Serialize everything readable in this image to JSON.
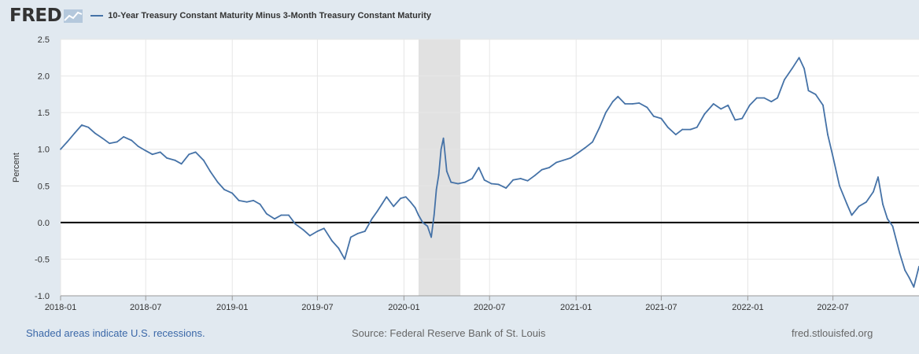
{
  "header": {
    "logo_text": "FRED",
    "logo_icon": "line-chart-icon",
    "series_title": "10-Year Treasury Constant Maturity Minus 3-Month Treasury Constant Maturity"
  },
  "footer": {
    "recession_note": "Shaded areas indicate U.S. recessions.",
    "source": "Source: Federal Reserve Bank of St. Louis",
    "site": "fred.stlouisfed.org"
  },
  "colors": {
    "background": "#e1e9f0",
    "plot_background": "#ffffff",
    "series": "#4572a7",
    "recession": "#e1e1e1",
    "zero_line": "#000000"
  },
  "chart_data": {
    "type": "line",
    "title": "10-Year Treasury Constant Maturity Minus 3-Month Treasury Constant Maturity",
    "ylabel": "Percent",
    "xlabel": "",
    "ylim": [
      -1.0,
      2.5
    ],
    "xlim": [
      "2018-01-01",
      "2022-12-31"
    ],
    "y_ticks": [
      -1.0,
      -0.5,
      0.0,
      0.5,
      1.0,
      1.5,
      2.0,
      2.5
    ],
    "y_tick_labels": [
      "-1.0",
      "-0.5",
      "0.0",
      "0.5",
      "1.0",
      "1.5",
      "2.0",
      "2.5"
    ],
    "x_ticks": [
      "2018-01-01",
      "2018-07-01",
      "2019-01-01",
      "2019-07-01",
      "2020-01-01",
      "2020-07-01",
      "2021-01-01",
      "2021-07-01",
      "2022-01-01",
      "2022-07-01"
    ],
    "x_tick_labels": [
      "2018-01",
      "2018-07",
      "2019-01",
      "2019-07",
      "2020-01",
      "2020-07",
      "2021-01",
      "2021-07",
      "2022-01",
      "2022-07"
    ],
    "grid": true,
    "recession_periods": [
      [
        "2020-02-01",
        "2020-04-30"
      ]
    ],
    "reference_line": 0.0,
    "series": [
      {
        "name": "10-Year Treasury Constant Maturity Minus 3-Month Treasury Constant Maturity",
        "points": [
          [
            "2018-01-01",
            1.0
          ],
          [
            "2018-01-15",
            1.1
          ],
          [
            "2018-01-31",
            1.22
          ],
          [
            "2018-02-15",
            1.33
          ],
          [
            "2018-03-01",
            1.3
          ],
          [
            "2018-03-15",
            1.22
          ],
          [
            "2018-03-31",
            1.15
          ],
          [
            "2018-04-15",
            1.08
          ],
          [
            "2018-05-01",
            1.1
          ],
          [
            "2018-05-15",
            1.17
          ],
          [
            "2018-06-01",
            1.12
          ],
          [
            "2018-06-15",
            1.04
          ],
          [
            "2018-07-01",
            0.98
          ],
          [
            "2018-07-15",
            0.93
          ],
          [
            "2018-08-01",
            0.96
          ],
          [
            "2018-08-15",
            0.88
          ],
          [
            "2018-09-01",
            0.85
          ],
          [
            "2018-09-15",
            0.8
          ],
          [
            "2018-10-01",
            0.93
          ],
          [
            "2018-10-15",
            0.96
          ],
          [
            "2018-11-01",
            0.85
          ],
          [
            "2018-11-15",
            0.7
          ],
          [
            "2018-12-01",
            0.55
          ],
          [
            "2018-12-15",
            0.45
          ],
          [
            "2019-01-01",
            0.4
          ],
          [
            "2019-01-15",
            0.3
          ],
          [
            "2019-02-01",
            0.28
          ],
          [
            "2019-02-15",
            0.3
          ],
          [
            "2019-03-01",
            0.25
          ],
          [
            "2019-03-15",
            0.12
          ],
          [
            "2019-04-01",
            0.05
          ],
          [
            "2019-04-15",
            0.1
          ],
          [
            "2019-05-01",
            0.1
          ],
          [
            "2019-05-15",
            -0.02
          ],
          [
            "2019-06-01",
            -0.1
          ],
          [
            "2019-06-15",
            -0.18
          ],
          [
            "2019-07-01",
            -0.12
          ],
          [
            "2019-07-15",
            -0.08
          ],
          [
            "2019-08-01",
            -0.25
          ],
          [
            "2019-08-15",
            -0.35
          ],
          [
            "2019-08-28",
            -0.5
          ],
          [
            "2019-09-10",
            -0.2
          ],
          [
            "2019-09-25",
            -0.15
          ],
          [
            "2019-10-10",
            -0.12
          ],
          [
            "2019-10-25",
            0.05
          ],
          [
            "2019-11-05",
            0.15
          ],
          [
            "2019-11-15",
            0.25
          ],
          [
            "2019-11-25",
            0.35
          ],
          [
            "2019-12-10",
            0.22
          ],
          [
            "2019-12-25",
            0.33
          ],
          [
            "2020-01-05",
            0.35
          ],
          [
            "2020-01-15",
            0.28
          ],
          [
            "2020-01-25",
            0.2
          ],
          [
            "2020-02-01",
            0.1
          ],
          [
            "2020-02-10",
            0.0
          ],
          [
            "2020-02-20",
            -0.05
          ],
          [
            "2020-02-28",
            -0.2
          ],
          [
            "2020-03-05",
            0.1
          ],
          [
            "2020-03-10",
            0.45
          ],
          [
            "2020-03-15",
            0.65
          ],
          [
            "2020-03-20",
            1.0
          ],
          [
            "2020-03-25",
            1.15
          ],
          [
            "2020-04-01",
            0.7
          ],
          [
            "2020-04-10",
            0.55
          ],
          [
            "2020-04-25",
            0.53
          ],
          [
            "2020-05-10",
            0.55
          ],
          [
            "2020-05-25",
            0.6
          ],
          [
            "2020-06-08",
            0.75
          ],
          [
            "2020-06-20",
            0.58
          ],
          [
            "2020-07-05",
            0.53
          ],
          [
            "2020-07-20",
            0.52
          ],
          [
            "2020-08-05",
            0.47
          ],
          [
            "2020-08-20",
            0.58
          ],
          [
            "2020-09-05",
            0.6
          ],
          [
            "2020-09-20",
            0.57
          ],
          [
            "2020-10-05",
            0.64
          ],
          [
            "2020-10-20",
            0.72
          ],
          [
            "2020-11-05",
            0.75
          ],
          [
            "2020-11-20",
            0.82
          ],
          [
            "2020-12-05",
            0.85
          ],
          [
            "2020-12-20",
            0.88
          ],
          [
            "2021-01-05",
            0.95
          ],
          [
            "2021-01-20",
            1.02
          ],
          [
            "2021-02-05",
            1.1
          ],
          [
            "2021-02-20",
            1.3
          ],
          [
            "2021-03-05",
            1.5
          ],
          [
            "2021-03-20",
            1.65
          ],
          [
            "2021-03-31",
            1.72
          ],
          [
            "2021-04-15",
            1.62
          ],
          [
            "2021-05-01",
            1.62
          ],
          [
            "2021-05-15",
            1.63
          ],
          [
            "2021-06-01",
            1.57
          ],
          [
            "2021-06-15",
            1.45
          ],
          [
            "2021-07-01",
            1.42
          ],
          [
            "2021-07-15",
            1.3
          ],
          [
            "2021-08-01",
            1.2
          ],
          [
            "2021-08-15",
            1.27
          ],
          [
            "2021-09-01",
            1.27
          ],
          [
            "2021-09-15",
            1.3
          ],
          [
            "2021-10-01",
            1.48
          ],
          [
            "2021-10-20",
            1.62
          ],
          [
            "2021-11-05",
            1.55
          ],
          [
            "2021-11-20",
            1.6
          ],
          [
            "2021-12-05",
            1.4
          ],
          [
            "2021-12-20",
            1.42
          ],
          [
            "2022-01-05",
            1.6
          ],
          [
            "2022-01-20",
            1.7
          ],
          [
            "2022-02-05",
            1.7
          ],
          [
            "2022-02-20",
            1.65
          ],
          [
            "2022-03-05",
            1.7
          ],
          [
            "2022-03-20",
            1.95
          ],
          [
            "2022-04-05",
            2.1
          ],
          [
            "2022-04-20",
            2.25
          ],
          [
            "2022-05-01",
            2.1
          ],
          [
            "2022-05-10",
            1.8
          ],
          [
            "2022-05-25",
            1.75
          ],
          [
            "2022-06-10",
            1.6
          ],
          [
            "2022-06-20",
            1.2
          ],
          [
            "2022-07-01",
            0.9
          ],
          [
            "2022-07-15",
            0.5
          ],
          [
            "2022-07-31",
            0.25
          ],
          [
            "2022-08-10",
            0.1
          ],
          [
            "2022-08-25",
            0.22
          ],
          [
            "2022-09-10",
            0.28
          ],
          [
            "2022-09-25",
            0.42
          ],
          [
            "2022-10-05",
            0.62
          ],
          [
            "2022-10-15",
            0.25
          ],
          [
            "2022-10-25",
            0.05
          ],
          [
            "2022-11-05",
            -0.05
          ],
          [
            "2022-11-20",
            -0.42
          ],
          [
            "2022-12-01",
            -0.65
          ],
          [
            "2022-12-10",
            -0.75
          ],
          [
            "2022-12-20",
            -0.88
          ],
          [
            "2022-12-31",
            -0.6
          ]
        ]
      }
    ]
  }
}
